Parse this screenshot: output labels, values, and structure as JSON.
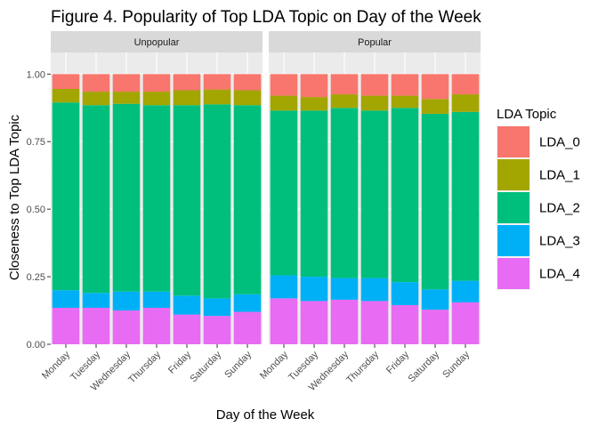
{
  "chart_data": {
    "type": "bar",
    "stacked": true,
    "title": "Figure 4. Popularity of Top LDA Topic on Day of the Week",
    "xlabel": "Day of the Week",
    "ylabel": "Closeness to Top LDA Topic",
    "ylim": [
      0,
      1.08
    ],
    "yticks": [
      0.0,
      0.25,
      0.5,
      0.75,
      1.0
    ],
    "ytick_labels": [
      "0.00",
      "0.25",
      "0.50",
      "0.75",
      "1.00"
    ],
    "categories": [
      "Monday",
      "Tuesday",
      "Wednesday",
      "Thursday",
      "Friday",
      "Saturday",
      "Sunday"
    ],
    "grid": true,
    "legend": {
      "title": "LDA Topic",
      "position": "right"
    },
    "series": [
      {
        "name": "LDA_0",
        "color": "#F8766D"
      },
      {
        "name": "LDA_1",
        "color": "#A3A500"
      },
      {
        "name": "LDA_2",
        "color": "#00BF7D"
      },
      {
        "name": "LDA_3",
        "color": "#00B0F6"
      },
      {
        "name": "LDA_4",
        "color": "#E76BF3"
      }
    ],
    "panels": [
      {
        "label": "Unpopular",
        "values": {
          "LDA_0": [
            0.055,
            0.065,
            0.065,
            0.065,
            0.06,
            0.057,
            0.06
          ],
          "LDA_1": [
            0.05,
            0.05,
            0.045,
            0.05,
            0.055,
            0.055,
            0.055
          ],
          "LDA_2": [
            0.695,
            0.695,
            0.695,
            0.69,
            0.705,
            0.718,
            0.7
          ],
          "LDA_3": [
            0.065,
            0.055,
            0.07,
            0.06,
            0.07,
            0.065,
            0.065
          ],
          "LDA_4": [
            0.135,
            0.135,
            0.125,
            0.135,
            0.11,
            0.105,
            0.12
          ]
        }
      },
      {
        "label": "Popular",
        "values": {
          "LDA_0": [
            0.08,
            0.085,
            0.075,
            0.08,
            0.08,
            0.092,
            0.075
          ],
          "LDA_1": [
            0.055,
            0.05,
            0.05,
            0.055,
            0.045,
            0.055,
            0.065
          ],
          "LDA_2": [
            0.61,
            0.615,
            0.63,
            0.62,
            0.645,
            0.65,
            0.625
          ],
          "LDA_3": [
            0.085,
            0.09,
            0.08,
            0.085,
            0.085,
            0.075,
            0.08
          ],
          "LDA_4": [
            0.17,
            0.16,
            0.165,
            0.16,
            0.145,
            0.128,
            0.155
          ]
        }
      }
    ]
  }
}
